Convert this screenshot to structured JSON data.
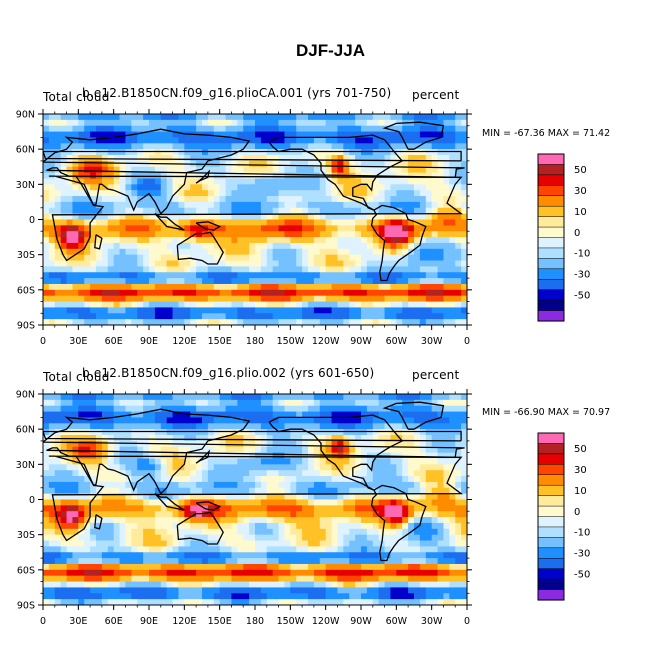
{
  "figure_title": "DJF-JJA",
  "chart_data": [
    {
      "type": "heatmap",
      "title": "b.e12.B1850CN.f09_g16.plioCA.001 (yrs 701-750)",
      "left_label": "Total cloud",
      "units": "percent",
      "stats": "MIN = -67.36 MAX = 71.42",
      "min": -67.36,
      "max": 71.42,
      "x_ticks": [
        "0",
        "30E",
        "60E",
        "90E",
        "120E",
        "150E",
        "180",
        "150W",
        "120W",
        "90W",
        "60W",
        "30W",
        "0"
      ],
      "y_ticks": [
        "90N",
        "60N",
        "30N",
        "0",
        "30S",
        "60S",
        "90S"
      ],
      "xlim": [
        0,
        360
      ],
      "ylim": [
        -90,
        90
      ]
    },
    {
      "type": "heatmap",
      "title": "b.e12.B1850CN.f09_g16.plio.002 (yrs 601-650)",
      "left_label": "Total cloud",
      "units": "percent",
      "stats": "MIN = -66.90 MAX = 70.97",
      "min": -66.9,
      "max": 70.97,
      "x_ticks": [
        "0",
        "30E",
        "60E",
        "90E",
        "120E",
        "150E",
        "180",
        "150W",
        "120W",
        "90W",
        "60W",
        "30W",
        "0"
      ],
      "y_ticks": [
        "90N",
        "60N",
        "30N",
        "0",
        "30S",
        "60S",
        "90S"
      ],
      "xlim": [
        0,
        360
      ],
      "ylim": [
        -90,
        90
      ]
    }
  ],
  "colorbar": {
    "labels": [
      "50",
      "30",
      "10",
      "0",
      "-10",
      "-30",
      "-50"
    ],
    "colors": [
      "#ff69b4",
      "#b22222",
      "#e60000",
      "#ff4500",
      "#ff8c00",
      "#ffc125",
      "#ffeb9b",
      "#fffacd",
      "#dff2ff",
      "#b0e0ff",
      "#75c1ff",
      "#1e90ff",
      "#1c6ef0",
      "#0000cd",
      "#00008b",
      "#8a2be2"
    ]
  }
}
